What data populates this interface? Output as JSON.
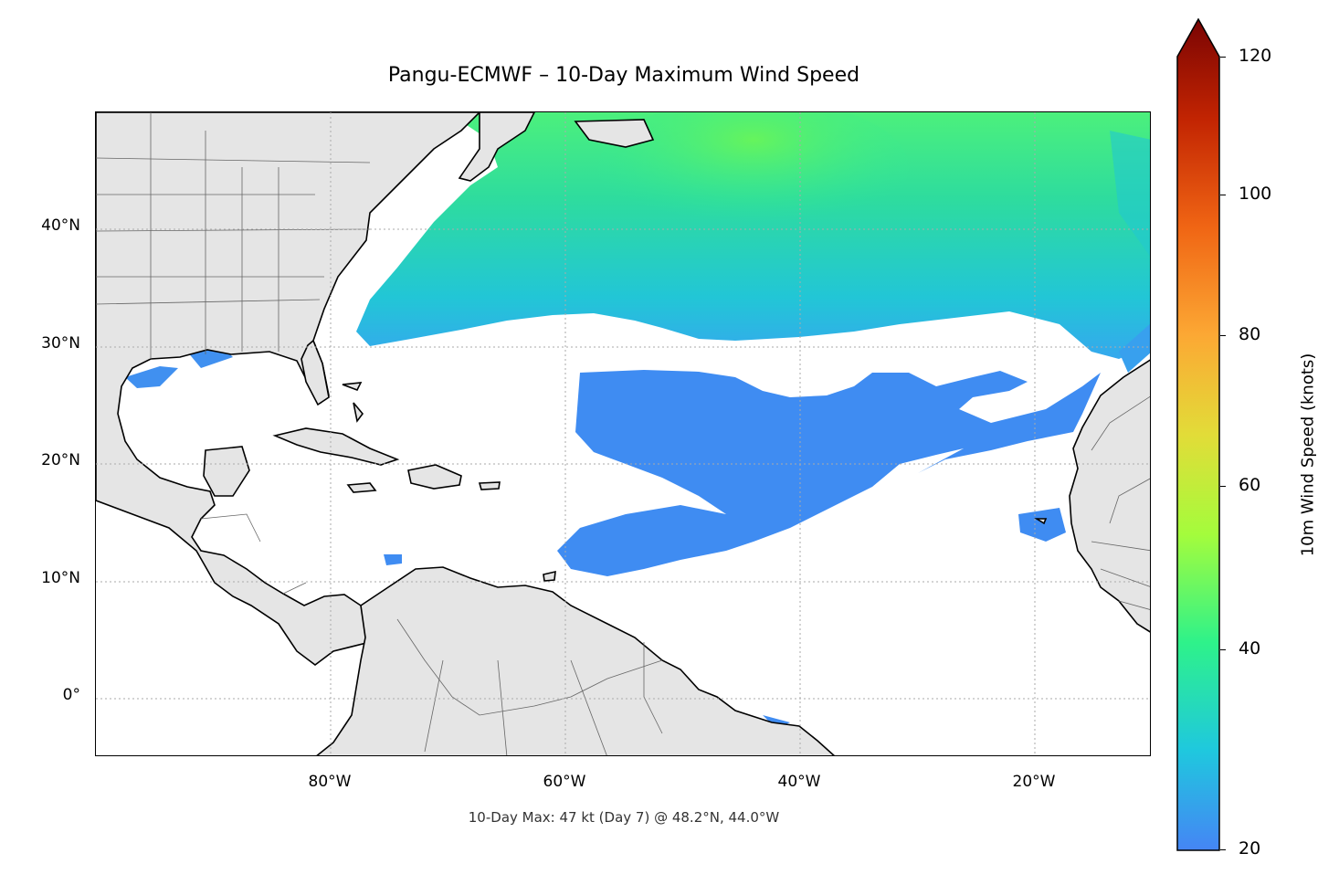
{
  "title": "Pangu-ECMWF – 10-Day Maximum Wind Speed",
  "footnote": "10-Day Max: 47 kt (Day 7) @ 48.2°N, 44.0°W",
  "map": {
    "lon_range": [
      -100,
      -10
    ],
    "lat_range": [
      -5,
      50
    ],
    "lat_labels": [
      "40°N",
      "30°N",
      "20°N",
      "10°N",
      "0°"
    ],
    "lon_labels": [
      "80°W",
      "60°W",
      "40°W",
      "20°W"
    ],
    "land_color": "#e5e5e5",
    "ocean_color": "#ffffff",
    "gridlines": true
  },
  "colorbar": {
    "label": "10m Wind Speed (knots)",
    "ticks": [
      "120",
      "100",
      "80",
      "60",
      "40",
      "20"
    ],
    "range": [
      20,
      120
    ],
    "extend": "max",
    "colormap": "turbo",
    "colors": [
      "#4585f5",
      "#1fc8de",
      "#2ef28a",
      "#a4fc3c",
      "#e2dc38",
      "#fca834",
      "#f06514",
      "#c22402",
      "#7a0403"
    ]
  },
  "max_point": {
    "speed_kt": 47,
    "day": 7,
    "lat": 48.2,
    "lon": -44.0
  }
}
